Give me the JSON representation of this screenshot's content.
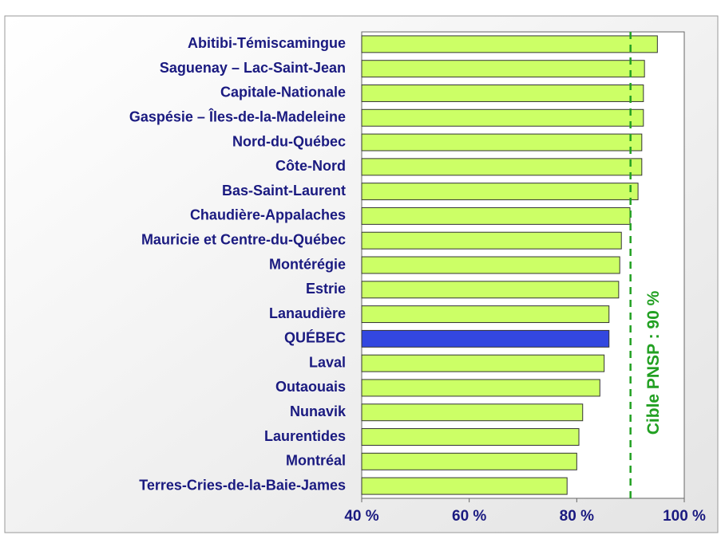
{
  "chart_data": {
    "type": "barh",
    "categories": [
      "Abitibi-Témiscamingue",
      "Saguenay – Lac-Saint-Jean",
      "Capitale-Nationale",
      "Gaspésie – Îles-de-la-Madeleine",
      "Nord-du-Québec",
      "Côte-Nord",
      "Bas-Saint-Laurent",
      "Chaudière-Appalaches",
      "Mauricie et Centre-du-Québec",
      "Montérégie",
      "Estrie",
      "Lanaudière",
      "QUÉBEC",
      "Laval",
      "Outaouais",
      "Nunavik",
      "Laurentides",
      "Montréal",
      "Terres-Cries-de-la-Baie-James"
    ],
    "values": [
      95.0,
      92.6,
      92.4,
      92.4,
      92.1,
      92.1,
      91.4,
      89.9,
      88.3,
      88.0,
      87.8,
      86.0,
      86.0,
      85.1,
      84.3,
      81.1,
      80.4,
      80.0,
      78.2
    ],
    "colors": [
      "#ccff66",
      "#ccff66",
      "#ccff66",
      "#ccff66",
      "#ccff66",
      "#ccff66",
      "#ccff66",
      "#ccff66",
      "#ccff66",
      "#ccff66",
      "#ccff66",
      "#ccff66",
      "#3347e0",
      "#ccff66",
      "#ccff66",
      "#ccff66",
      "#ccff66",
      "#ccff66",
      "#ccff66"
    ],
    "xlim": [
      40,
      100
    ],
    "xticks": [
      {
        "value": 40,
        "label": "40 %"
      },
      {
        "value": 60,
        "label": "60 %"
      },
      {
        "value": 80,
        "label": "80 %"
      },
      {
        "value": 100,
        "label": "100 %"
      }
    ],
    "target": {
      "value": 90,
      "label": "Cible PNSP : 90 %",
      "color": "#22a022"
    },
    "grid": false
  }
}
